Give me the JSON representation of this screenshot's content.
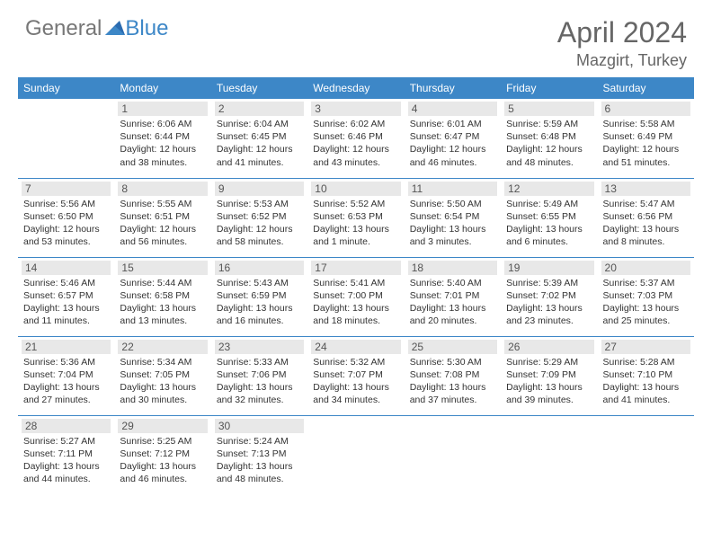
{
  "logo": {
    "text1": "General",
    "text2": "Blue"
  },
  "header": {
    "title": "April 2024",
    "location": "Mazgirt, Turkey"
  },
  "colors": {
    "header_bg": "#3d87c7",
    "header_text": "#ffffff",
    "daynum_bg": "#e8e8e8",
    "border": "#3d87c7",
    "title_color": "#666666"
  },
  "dayNames": [
    "Sunday",
    "Monday",
    "Tuesday",
    "Wednesday",
    "Thursday",
    "Friday",
    "Saturday"
  ],
  "weeks": [
    [
      null,
      {
        "n": "1",
        "sr": "6:06 AM",
        "ss": "6:44 PM",
        "dl": "12 hours and 38 minutes."
      },
      {
        "n": "2",
        "sr": "6:04 AM",
        "ss": "6:45 PM",
        "dl": "12 hours and 41 minutes."
      },
      {
        "n": "3",
        "sr": "6:02 AM",
        "ss": "6:46 PM",
        "dl": "12 hours and 43 minutes."
      },
      {
        "n": "4",
        "sr": "6:01 AM",
        "ss": "6:47 PM",
        "dl": "12 hours and 46 minutes."
      },
      {
        "n": "5",
        "sr": "5:59 AM",
        "ss": "6:48 PM",
        "dl": "12 hours and 48 minutes."
      },
      {
        "n": "6",
        "sr": "5:58 AM",
        "ss": "6:49 PM",
        "dl": "12 hours and 51 minutes."
      }
    ],
    [
      {
        "n": "7",
        "sr": "5:56 AM",
        "ss": "6:50 PM",
        "dl": "12 hours and 53 minutes."
      },
      {
        "n": "8",
        "sr": "5:55 AM",
        "ss": "6:51 PM",
        "dl": "12 hours and 56 minutes."
      },
      {
        "n": "9",
        "sr": "5:53 AM",
        "ss": "6:52 PM",
        "dl": "12 hours and 58 minutes."
      },
      {
        "n": "10",
        "sr": "5:52 AM",
        "ss": "6:53 PM",
        "dl": "13 hours and 1 minute."
      },
      {
        "n": "11",
        "sr": "5:50 AM",
        "ss": "6:54 PM",
        "dl": "13 hours and 3 minutes."
      },
      {
        "n": "12",
        "sr": "5:49 AM",
        "ss": "6:55 PM",
        "dl": "13 hours and 6 minutes."
      },
      {
        "n": "13",
        "sr": "5:47 AM",
        "ss": "6:56 PM",
        "dl": "13 hours and 8 minutes."
      }
    ],
    [
      {
        "n": "14",
        "sr": "5:46 AM",
        "ss": "6:57 PM",
        "dl": "13 hours and 11 minutes."
      },
      {
        "n": "15",
        "sr": "5:44 AM",
        "ss": "6:58 PM",
        "dl": "13 hours and 13 minutes."
      },
      {
        "n": "16",
        "sr": "5:43 AM",
        "ss": "6:59 PM",
        "dl": "13 hours and 16 minutes."
      },
      {
        "n": "17",
        "sr": "5:41 AM",
        "ss": "7:00 PM",
        "dl": "13 hours and 18 minutes."
      },
      {
        "n": "18",
        "sr": "5:40 AM",
        "ss": "7:01 PM",
        "dl": "13 hours and 20 minutes."
      },
      {
        "n": "19",
        "sr": "5:39 AM",
        "ss": "7:02 PM",
        "dl": "13 hours and 23 minutes."
      },
      {
        "n": "20",
        "sr": "5:37 AM",
        "ss": "7:03 PM",
        "dl": "13 hours and 25 minutes."
      }
    ],
    [
      {
        "n": "21",
        "sr": "5:36 AM",
        "ss": "7:04 PM",
        "dl": "13 hours and 27 minutes."
      },
      {
        "n": "22",
        "sr": "5:34 AM",
        "ss": "7:05 PM",
        "dl": "13 hours and 30 minutes."
      },
      {
        "n": "23",
        "sr": "5:33 AM",
        "ss": "7:06 PM",
        "dl": "13 hours and 32 minutes."
      },
      {
        "n": "24",
        "sr": "5:32 AM",
        "ss": "7:07 PM",
        "dl": "13 hours and 34 minutes."
      },
      {
        "n": "25",
        "sr": "5:30 AM",
        "ss": "7:08 PM",
        "dl": "13 hours and 37 minutes."
      },
      {
        "n": "26",
        "sr": "5:29 AM",
        "ss": "7:09 PM",
        "dl": "13 hours and 39 minutes."
      },
      {
        "n": "27",
        "sr": "5:28 AM",
        "ss": "7:10 PM",
        "dl": "13 hours and 41 minutes."
      }
    ],
    [
      {
        "n": "28",
        "sr": "5:27 AM",
        "ss": "7:11 PM",
        "dl": "13 hours and 44 minutes."
      },
      {
        "n": "29",
        "sr": "5:25 AM",
        "ss": "7:12 PM",
        "dl": "13 hours and 46 minutes."
      },
      {
        "n": "30",
        "sr": "5:24 AM",
        "ss": "7:13 PM",
        "dl": "13 hours and 48 minutes."
      },
      null,
      null,
      null,
      null
    ]
  ],
  "labels": {
    "sunrise": "Sunrise:",
    "sunset": "Sunset:",
    "daylight": "Daylight:"
  }
}
